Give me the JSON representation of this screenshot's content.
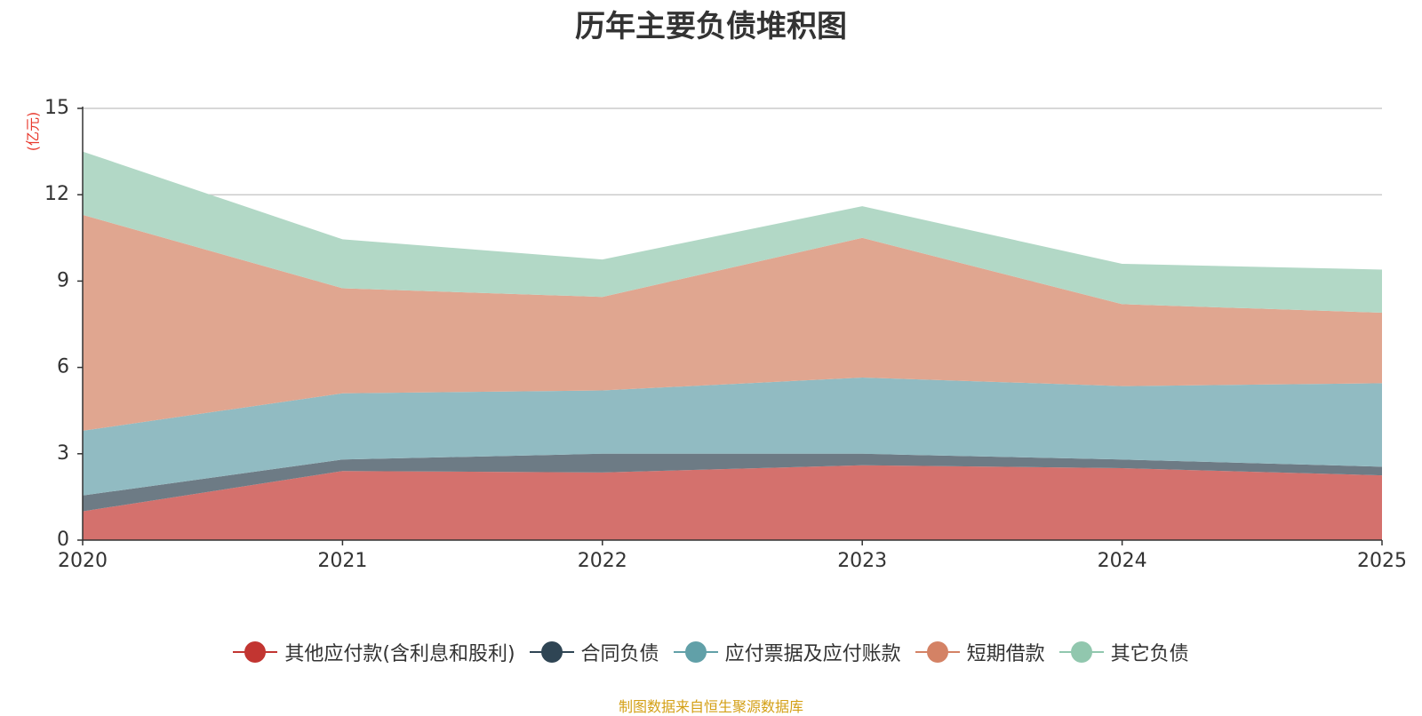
{
  "chart_data": {
    "type": "area",
    "stacked": true,
    "title": "历年主要负债堆积图",
    "ylabel": "(亿元)",
    "xlabel": "",
    "ylim": [
      0,
      15
    ],
    "yticks": [
      0,
      3,
      6,
      9,
      12,
      15
    ],
    "categories": [
      "2020",
      "2021",
      "2022",
      "2023",
      "2024",
      "2025"
    ],
    "grid": true,
    "legend_position": "bottom",
    "series": [
      {
        "name": "其他应付款(含利息和股利)",
        "color": "#c23531",
        "fill": "#d4716d",
        "values": [
          1.0,
          2.4,
          2.35,
          2.6,
          2.5,
          2.25
        ]
      },
      {
        "name": "合同负债",
        "color": "#2f4554",
        "fill": "#6d7b85",
        "values": [
          0.55,
          0.4,
          0.65,
          0.4,
          0.3,
          0.3
        ]
      },
      {
        "name": "应付票据及应付账款",
        "color": "#61a0a8",
        "fill": "#91bbc2",
        "values": [
          2.25,
          2.3,
          2.2,
          2.65,
          2.55,
          2.9
        ]
      },
      {
        "name": "短期借款",
        "color": "#d48265",
        "fill": "#e0a690",
        "values": [
          7.5,
          3.65,
          3.25,
          4.85,
          2.85,
          2.45
        ]
      },
      {
        "name": "其它负债",
        "color": "#91c7ae",
        "fill": "#b2d8c6",
        "values": [
          2.2,
          1.7,
          1.3,
          1.1,
          1.4,
          1.5
        ]
      }
    ]
  },
  "source_note": "制图数据来自恒生聚源数据库"
}
